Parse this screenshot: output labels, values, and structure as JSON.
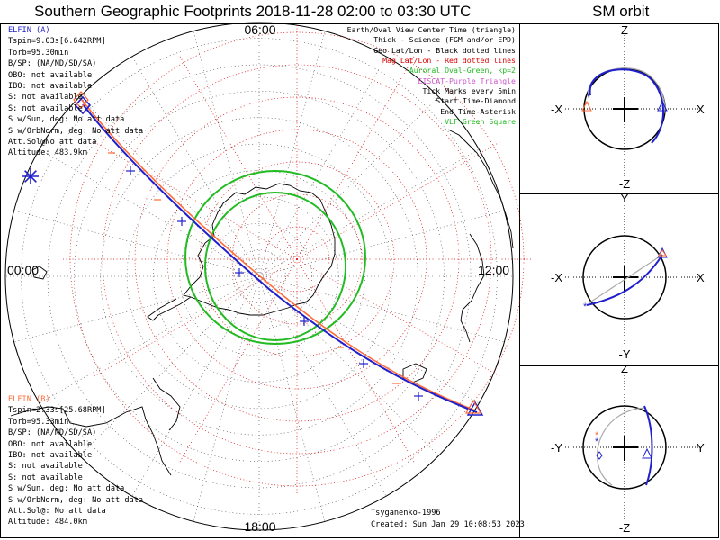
{
  "header": {
    "main_title": "Southern Geographic Footprints 2018-11-28 02:00 to 03:30 UTC",
    "sm_title": "SM orbit"
  },
  "spacecraft_a": {
    "name": "ELFIN (A)",
    "color": "#1f1fcc",
    "lines": [
      "Tspin=9.03s[6.642RPM]",
      "Torb=95.30min",
      "B/SP: (NA/ND/SD/SA)",
      "OBO: not available",
      "IBO: not available",
      "S: not available",
      "S: not available",
      "S w/Sun, deg: No att data",
      "S w/OrbNorm, deg: No att data",
      "Att.Sol@No att data",
      "Altitude: 483.9km"
    ]
  },
  "spacecraft_b": {
    "name": "ELFIN (B)",
    "color": "#ff6a3a",
    "lines": [
      "Tspin=2.33s[25.68RPM]",
      "Torb=95.33min",
      "B/SP: (NA/ND/SD/SA)",
      "OBO: not available",
      "IBO: not available",
      "S: not available",
      "S: not available",
      "S w/Sun, deg: No att data",
      "S w/OrbNorm, deg: No att data",
      "Att.Sol@: No att data",
      "Altitude: 484.0km"
    ]
  },
  "legend": [
    {
      "text": "Earth/Oval View Center Time (triangle)",
      "color": "#000000"
    },
    {
      "text": "Thick - Science (FGM and/or EPD)",
      "color": "#000000"
    },
    {
      "text": "Geo Lat/Lon - Black dotted lines",
      "color": "#000000"
    },
    {
      "text": "Mag Lat/Lon - Red dotted lines",
      "color": "#dd0000"
    },
    {
      "text": "Auroral Oval-Green, kp=2",
      "color": "#22bb22"
    },
    {
      "text": "EISCAT-Purple Triangle",
      "color": "#cc55cc"
    },
    {
      "text": "Tick Marks every 5min",
      "color": "#000000"
    },
    {
      "text": "Start Time-Diamond",
      "color": "#000000"
    },
    {
      "text": "End Time-Asterisk",
      "color": "#000000"
    },
    {
      "text": "VLF-Green Square",
      "color": "#22bb22"
    }
  ],
  "credits": {
    "author": "Tsyganenko-1996",
    "created": "Created: Sun Jan 29 10:08:53 2023"
  },
  "chart_data": [
    {
      "type": "polar-map",
      "hemisphere": "south",
      "title": "Southern Geographic Footprints 2018-11-28 02:00 to 03:30 UTC",
      "time_labels": {
        "top": "06:00",
        "left": "00:00",
        "right": "12:00",
        "bottom": "18:00"
      },
      "grid": {
        "geo_lines_color": "#000000",
        "mag_lines_color": "#dd0000",
        "style": "dotted"
      },
      "auroral_oval": {
        "kp": 2,
        "color": "#22bb22"
      },
      "tick_interval_min": 5,
      "series": [
        {
          "name": "ELFIN (A)",
          "color": "#1f1fcc",
          "ticks": 9
        },
        {
          "name": "ELFIN (B)",
          "color": "#ff6a3a",
          "ticks": 9
        }
      ]
    },
    {
      "type": "orbit-projection",
      "title": "SM orbit",
      "panels": [
        {
          "horizontal": [
            "-X",
            "X"
          ],
          "vertical": [
            "Z",
            "-Z"
          ]
        },
        {
          "horizontal": [
            "-X",
            "X"
          ],
          "vertical": [
            "Y",
            "-Y"
          ]
        },
        {
          "horizontal": [
            "-Y",
            "Y"
          ],
          "vertical": [
            "Z",
            "-Z"
          ]
        }
      ]
    }
  ]
}
